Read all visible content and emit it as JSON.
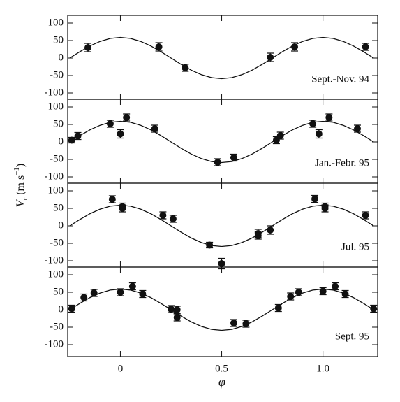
{
  "figure": {
    "xlabel": "φ",
    "ylabel": [
      "V",
      "r",
      " (m s",
      "−1",
      ")"
    ]
  },
  "chart_data": [
    {
      "type": "scatter",
      "label": "Sept.-Nov. 94",
      "xlim": [
        -0.26,
        1.27
      ],
      "ylim": [
        -118,
        122
      ],
      "yticks": [
        -100,
        -50,
        0,
        50,
        100
      ],
      "points": {
        "x": [
          -0.16,
          0.19,
          0.32,
          0.74,
          0.86,
          1.21
        ],
        "values": [
          30,
          32,
          -28,
          2,
          32,
          32
        ],
        "errors": [
          12,
          12,
          10,
          12,
          12,
          10
        ]
      },
      "curve": {
        "x": [
          -0.25,
          -0.2,
          -0.15,
          -0.1,
          -0.05,
          0,
          0.05,
          0.1,
          0.15,
          0.2,
          0.25,
          0.3,
          0.35,
          0.4,
          0.45,
          0.5,
          0.55,
          0.6,
          0.65,
          0.7,
          0.75,
          0.8,
          0.85,
          0.9,
          0.95,
          1,
          1.05,
          1.1,
          1.15,
          1.2,
          1.25
        ],
        "values": [
          0,
          18.2,
          34.7,
          47.7,
          56.1,
          59,
          56.1,
          47.7,
          34.7,
          18.2,
          0,
          -18.2,
          -34.7,
          -47.7,
          -56.1,
          -59,
          -56.1,
          -47.7,
          -34.7,
          -18.2,
          0,
          18.2,
          34.7,
          47.7,
          56.1,
          59,
          56.1,
          47.7,
          34.7,
          18.2,
          0
        ]
      }
    },
    {
      "type": "scatter",
      "label": "Jan.-Febr. 95",
      "xlim": [
        -0.26,
        1.27
      ],
      "ylim": [
        -118,
        122
      ],
      "yticks": [
        -100,
        -50,
        0,
        50,
        100
      ],
      "points": {
        "x": [
          -0.24,
          -0.21,
          -0.05,
          0,
          0.03,
          0.17,
          0.48,
          0.56,
          0.77,
          0.79,
          0.95,
          0.98,
          1.03,
          1.17
        ],
        "values": [
          5,
          17,
          52,
          23,
          70,
          38,
          -58,
          -45,
          5,
          18,
          52,
          23,
          70,
          38
        ],
        "errors": [
          8,
          10,
          10,
          12,
          10,
          10,
          10,
          10,
          10,
          10,
          10,
          12,
          10,
          10
        ]
      },
      "curve": {
        "x": [
          -0.25,
          -0.2,
          -0.15,
          -0.1,
          -0.05,
          0,
          0.05,
          0.1,
          0.15,
          0.2,
          0.25,
          0.3,
          0.35,
          0.4,
          0.45,
          0.5,
          0.55,
          0.6,
          0.65,
          0.7,
          0.75,
          0.8,
          0.85,
          0.9,
          0.95,
          1,
          1.05,
          1.1,
          1.15,
          1.2,
          1.25
        ],
        "values": [
          0,
          18.2,
          34.7,
          47.7,
          56.1,
          59,
          56.1,
          47.7,
          34.7,
          18.2,
          0,
          -18.2,
          -34.7,
          -47.7,
          -56.1,
          -59,
          -56.1,
          -47.7,
          -34.7,
          -18.2,
          0,
          18.2,
          34.7,
          47.7,
          56.1,
          59,
          56.1,
          47.7,
          34.7,
          18.2,
          0
        ]
      }
    },
    {
      "type": "scatter",
      "label": "Jul. 95",
      "xlim": [
        -0.26,
        1.27
      ],
      "ylim": [
        -118,
        122
      ],
      "yticks": [
        -100,
        -50,
        0,
        50,
        100
      ],
      "points": {
        "x": [
          -0.04,
          0.01,
          0.01,
          0.21,
          0.26,
          0.44,
          0.5,
          0.68,
          0.68,
          0.74,
          0.96,
          1.01,
          1.01,
          1.21
        ],
        "values": [
          76,
          55,
          50,
          30,
          20,
          -55,
          -108,
          -22,
          -28,
          -12,
          77,
          55,
          50,
          30
        ],
        "errors": [
          10,
          10,
          10,
          10,
          10,
          8,
          15,
          12,
          10,
          12,
          10,
          10,
          10,
          10
        ]
      },
      "curve": {
        "x": [
          -0.25,
          -0.2,
          -0.15,
          -0.1,
          -0.05,
          0,
          0.05,
          0.1,
          0.15,
          0.2,
          0.25,
          0.3,
          0.35,
          0.4,
          0.45,
          0.5,
          0.55,
          0.6,
          0.65,
          0.7,
          0.75,
          0.8,
          0.85,
          0.9,
          0.95,
          1,
          1.05,
          1.1,
          1.15,
          1.2,
          1.25
        ],
        "values": [
          0,
          18.2,
          34.7,
          47.7,
          56.1,
          59,
          56.1,
          47.7,
          34.7,
          18.2,
          0,
          -18.2,
          -34.7,
          -47.7,
          -56.1,
          -59,
          -56.1,
          -47.7,
          -34.7,
          -18.2,
          0,
          18.2,
          34.7,
          47.7,
          56.1,
          59,
          56.1,
          47.7,
          34.7,
          18.2,
          0
        ]
      }
    },
    {
      "type": "scatter",
      "label": "Sept. 95",
      "xlim": [
        -0.26,
        1.27
      ],
      "ylim": [
        -134,
        122
      ],
      "yticks": [
        -100,
        -50,
        0,
        50,
        100
      ],
      "xticks": [
        0,
        0.5,
        {
          "value": 1,
          "label": "1.0"
        }
      ],
      "points": {
        "x": [
          -0.24,
          -0.18,
          -0.13,
          0,
          0.06,
          0.11,
          0.25,
          0.28,
          0.28,
          0.56,
          0.62,
          0.78,
          0.84,
          0.88,
          1.0,
          1.06,
          1.11,
          1.25
        ],
        "values": [
          3,
          35,
          48,
          50,
          67,
          45,
          2,
          0,
          -22,
          -38,
          -40,
          5,
          38,
          50,
          53,
          67,
          45,
          3
        ],
        "errors": [
          10,
          10,
          10,
          10,
          10,
          10,
          10,
          10,
          10,
          10,
          10,
          10,
          10,
          10,
          10,
          10,
          10,
          10
        ]
      },
      "curve": {
        "x": [
          -0.25,
          -0.2,
          -0.15,
          -0.1,
          -0.05,
          0,
          0.05,
          0.1,
          0.15,
          0.2,
          0.25,
          0.3,
          0.35,
          0.4,
          0.45,
          0.5,
          0.55,
          0.6,
          0.65,
          0.7,
          0.75,
          0.8,
          0.85,
          0.9,
          0.95,
          1,
          1.05,
          1.1,
          1.15,
          1.2,
          1.25
        ],
        "values": [
          0,
          18.2,
          34.7,
          47.7,
          56.1,
          59,
          56.1,
          47.7,
          34.7,
          18.2,
          0,
          -18.2,
          -34.7,
          -47.7,
          -56.1,
          -59,
          -56.1,
          -47.7,
          -34.7,
          -18.2,
          0,
          18.2,
          34.7,
          47.7,
          56.1,
          59,
          56.1,
          47.7,
          34.7,
          18.2,
          0
        ]
      }
    }
  ]
}
